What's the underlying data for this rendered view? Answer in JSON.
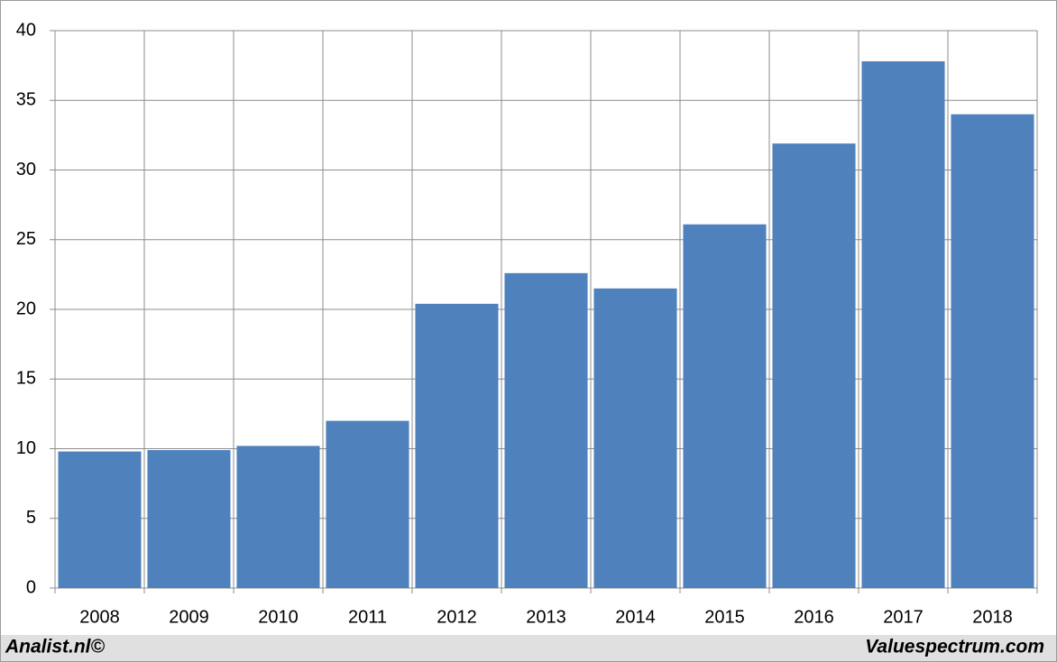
{
  "chart_data": {
    "type": "bar",
    "categories": [
      "2008",
      "2009",
      "2010",
      "2011",
      "2012",
      "2013",
      "2014",
      "2015",
      "2016",
      "2017",
      "2018"
    ],
    "values": [
      9.8,
      9.9,
      10.2,
      12.0,
      20.4,
      22.6,
      21.5,
      26.1,
      31.9,
      37.8,
      34.0
    ],
    "color": "#4f81bd",
    "ylim": [
      0,
      40
    ],
    "yticks": [
      0,
      5,
      10,
      15,
      20,
      25,
      30,
      35,
      40
    ],
    "grid": true,
    "annotations": [
      "Analist.nl©",
      "Valuespectrum.com"
    ]
  }
}
